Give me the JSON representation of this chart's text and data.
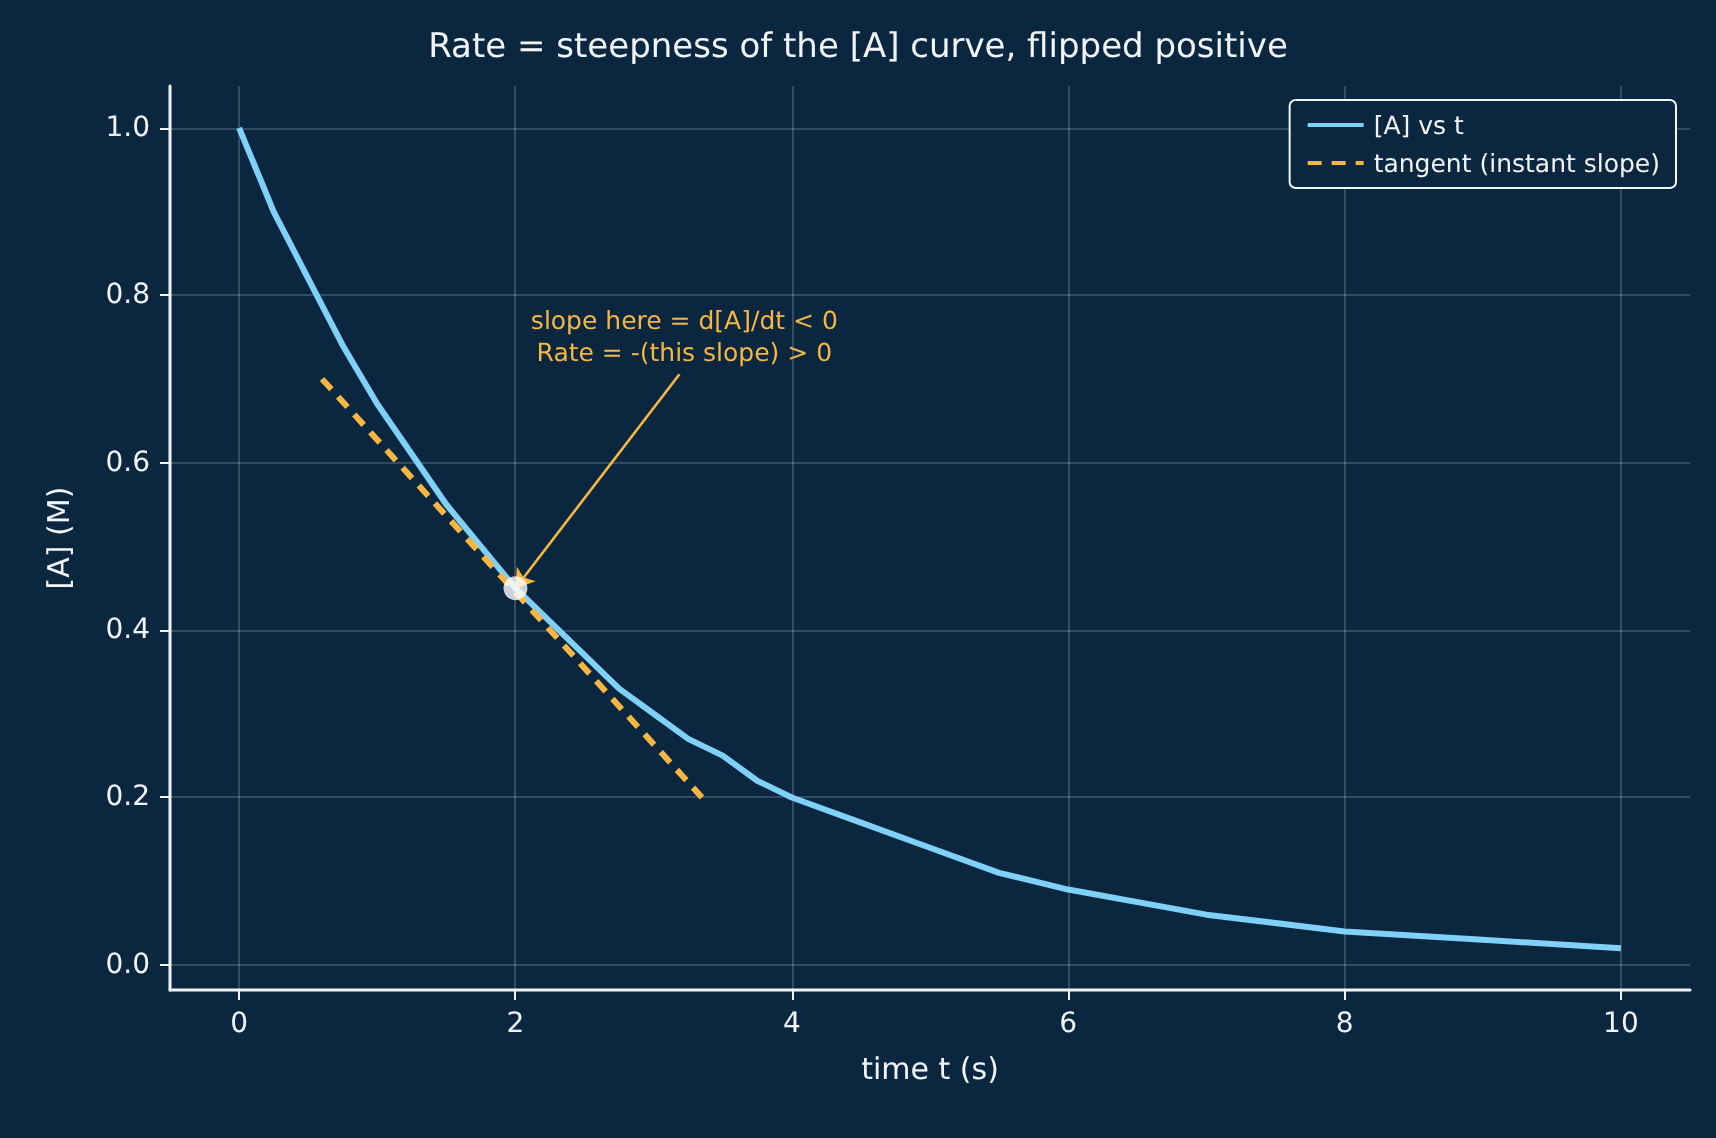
{
  "chart_data": {
    "type": "line",
    "title": "Rate = steepness of the [A] curve, flipped positive",
    "xlabel": "time t (s)",
    "ylabel": "[A] (M)",
    "series": [
      {
        "name": "[A] vs t",
        "color": "#7fd1fa",
        "line_style": "solid",
        "marker": "none",
        "x": [
          0,
          0.25,
          0.5,
          0.75,
          1,
          1.25,
          1.5,
          1.75,
          2,
          2.25,
          2.5,
          2.75,
          3,
          3.25,
          3.5,
          3.75,
          4,
          4.5,
          5,
          5.5,
          6,
          7,
          8,
          9,
          10
        ],
        "values": [
          1.0,
          0.9,
          0.82,
          0.74,
          0.67,
          0.61,
          0.55,
          0.5,
          0.45,
          0.41,
          0.37,
          0.33,
          0.3,
          0.27,
          0.25,
          0.22,
          0.2,
          0.17,
          0.14,
          0.11,
          0.09,
          0.06,
          0.04,
          0.03,
          0.02
        ]
      },
      {
        "name": "tangent (instant slope)",
        "color": "#f5b642",
        "line_style": "dashed",
        "marker": "none",
        "x": [
          0.6,
          3.35
        ],
        "values": [
          0.7,
          0.2
        ]
      },
      {
        "type": "scatter",
        "color": "#ffffff",
        "marker": "circle",
        "x": [
          2
        ],
        "values": [
          0.45
        ]
      }
    ],
    "annotations": [
      {
        "text": "slope here = d[A]/dt < 0\nRate = -(this slope) > 0",
        "x": 2,
        "y": 0.45
      }
    ],
    "xlim": [
      -0.5,
      10.5
    ],
    "ylim": [
      -0.03,
      1.05
    ],
    "xticks": [
      0,
      2,
      4,
      6,
      8,
      10
    ],
    "yticks": [
      {
        "value": 0,
        "label": "0.0"
      },
      0.2,
      0.4,
      0.6,
      0.8,
      {
        "value": 1,
        "label": "1.0"
      }
    ],
    "grid": true,
    "legend": "top right"
  }
}
